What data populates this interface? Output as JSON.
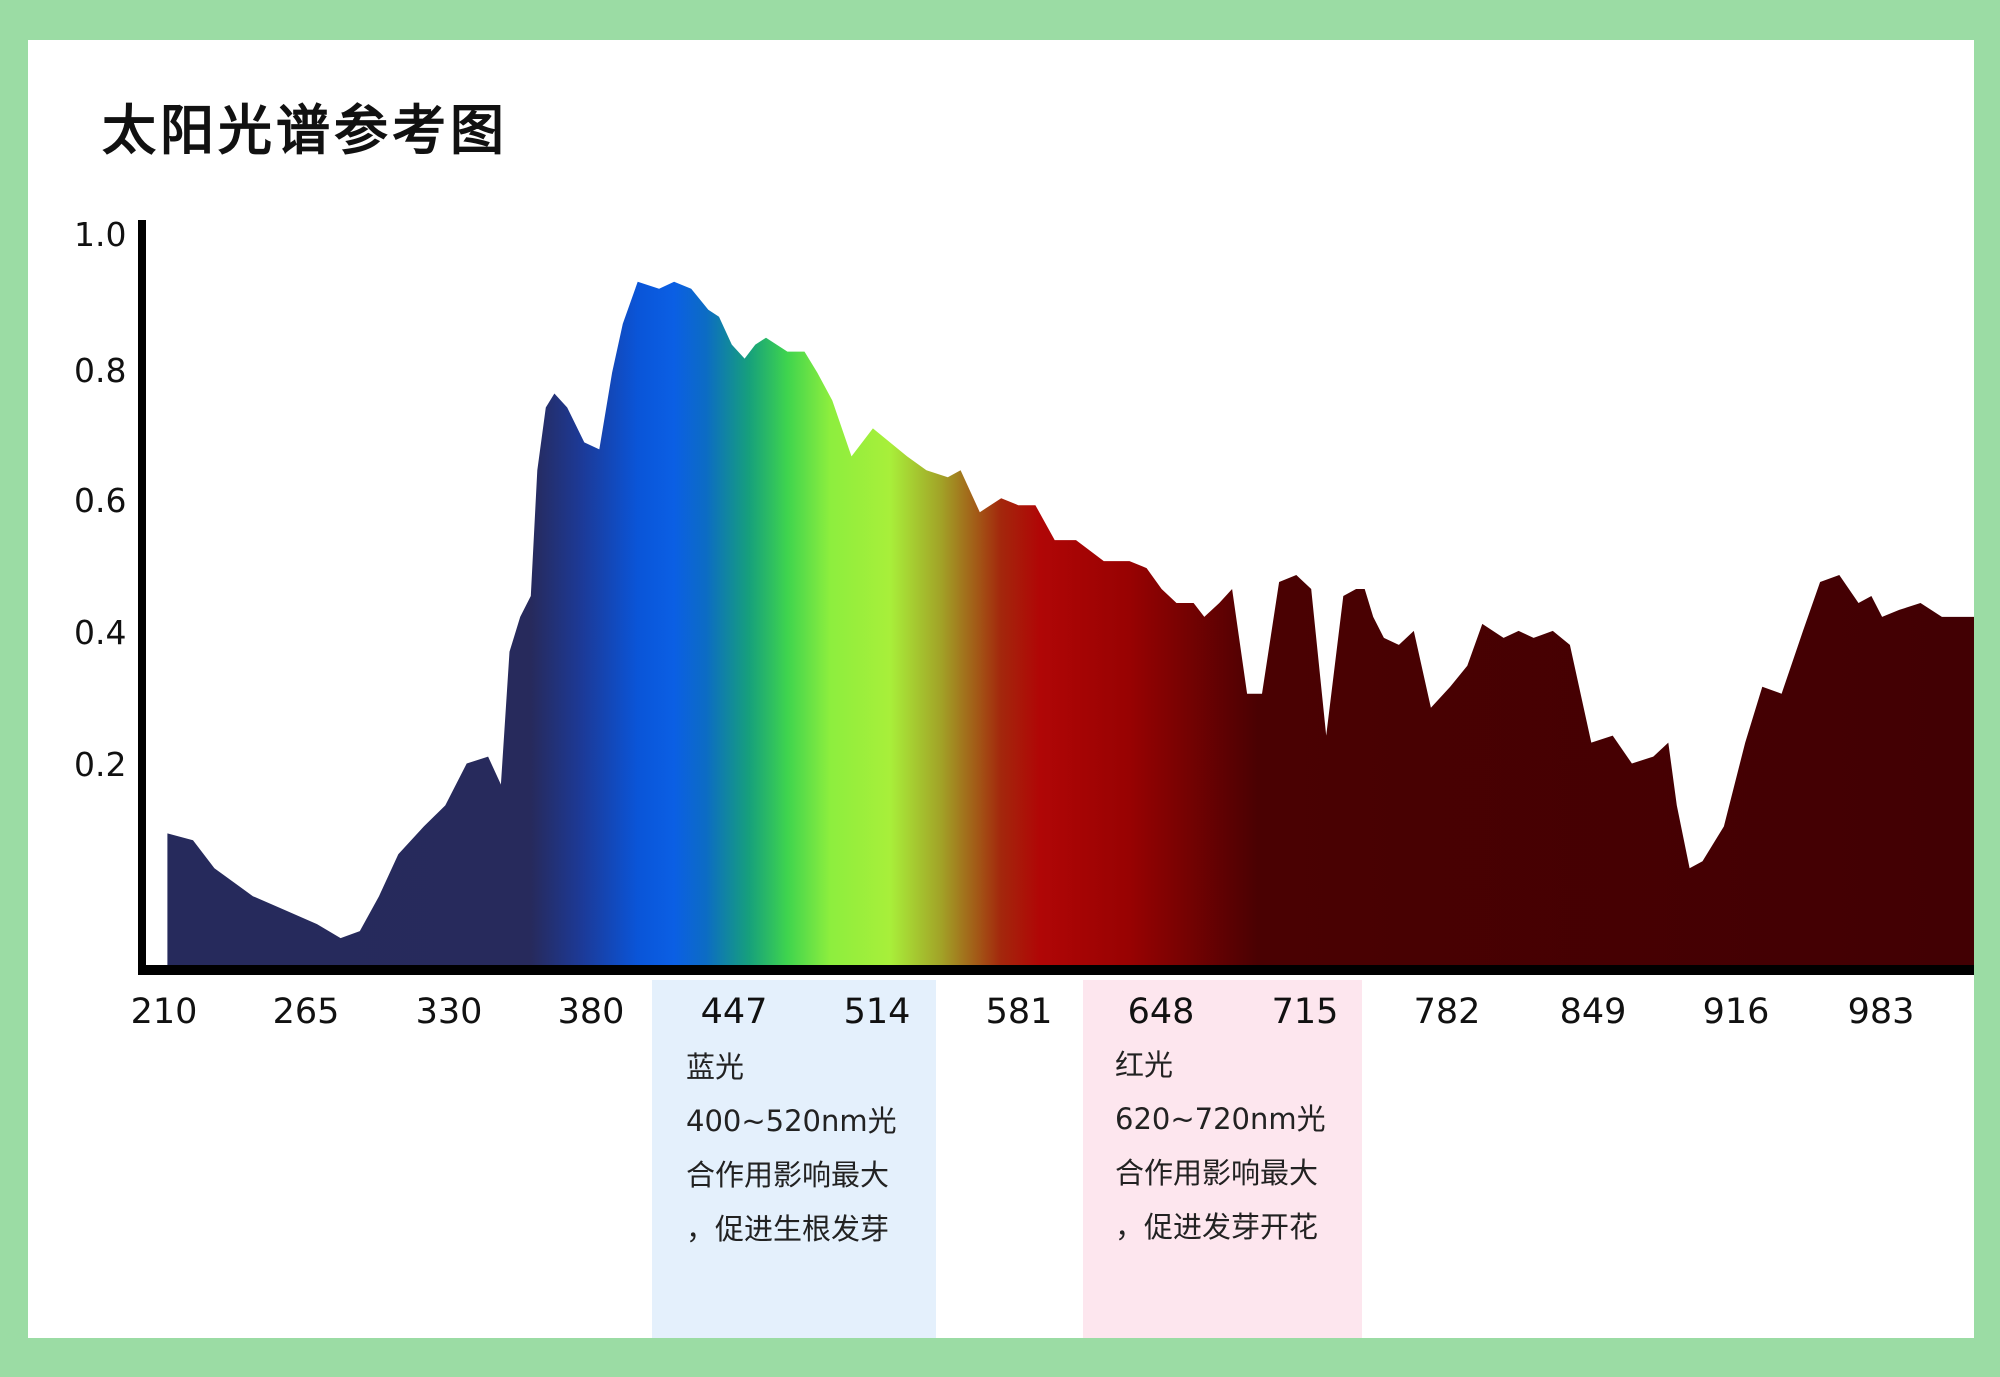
{
  "title": "太阳光谱参考图",
  "colors": {
    "frame": "#9bdca4",
    "blue_band_bg": "#e4f0fc",
    "red_band_bg": "#fde6ee",
    "axis": "#000000"
  },
  "chart_data": {
    "type": "area",
    "title": "太阳光谱参考图",
    "xlabel": "",
    "ylabel": "",
    "x_ticks": [
      "210",
      "265",
      "330",
      "380",
      "447",
      "514",
      "581",
      "648",
      "715",
      "782",
      "849",
      "916",
      "983"
    ],
    "y_ticks": [
      "1.0",
      "0.8",
      "0.6",
      "0.4",
      "0.2"
    ],
    "ylim": [
      0,
      1.08
    ],
    "xlim": [
      200,
      1055
    ],
    "grid": false,
    "series": [
      {
        "x": [
          210,
          222,
          232,
          250,
          265,
          280,
          291,
          300,
          309,
          318,
          330,
          340,
          350,
          360,
          366,
          370,
          375,
          380,
          383,
          387,
          391,
          397,
          405,
          412,
          418,
          423,
          430,
          440,
          447,
          455,
          463,
          468,
          474,
          480,
          485,
          490,
          500,
          508,
          514,
          521,
          530,
          540,
          548,
          556,
          565,
          575,
          581,
          590,
          600,
          608,
          616,
          625,
          635,
          648,
          660,
          668,
          675,
          682,
          690,
          695,
          702,
          708,
          715,
          722,
          730,
          738,
          745,
          752,
          760,
          766,
          770,
          774,
          779,
          786,
          793,
          801,
          810,
          818,
          825,
          835,
          842,
          849,
          858,
          866,
          876,
          886,
          895,
          905,
          912,
          916,
          922,
          928,
          938,
          948,
          956,
          965,
          975,
          983,
          992,
          1001,
          1007,
          1012,
          1020,
          1030,
          1040,
          1050
        ],
        "y": [
          0.19,
          0.18,
          0.14,
          0.1,
          0.08,
          0.06,
          0.04,
          0.05,
          0.1,
          0.16,
          0.2,
          0.23,
          0.29,
          0.3,
          0.26,
          0.45,
          0.5,
          0.53,
          0.71,
          0.8,
          0.82,
          0.8,
          0.75,
          0.74,
          0.85,
          0.92,
          0.98,
          0.97,
          0.98,
          0.97,
          0.94,
          0.93,
          0.89,
          0.87,
          0.89,
          0.9,
          0.88,
          0.88,
          0.85,
          0.81,
          0.73,
          0.77,
          0.75,
          0.73,
          0.71,
          0.7,
          0.71,
          0.65,
          0.67,
          0.66,
          0.66,
          0.61,
          0.61,
          0.58,
          0.58,
          0.57,
          0.54,
          0.52,
          0.52,
          0.5,
          0.52,
          0.54,
          0.39,
          0.39,
          0.55,
          0.56,
          0.54,
          0.33,
          0.53,
          0.54,
          0.54,
          0.5,
          0.47,
          0.46,
          0.48,
          0.37,
          0.4,
          0.43,
          0.49,
          0.47,
          0.48,
          0.47,
          0.48,
          0.46,
          0.32,
          0.33,
          0.29,
          0.3,
          0.32,
          0.23,
          0.14,
          0.15,
          0.2,
          0.32,
          0.4,
          0.39,
          0.48,
          0.55,
          0.56,
          0.52,
          0.53,
          0.5,
          0.51,
          0.52,
          0.5,
          0.5
        ]
      }
    ],
    "gradient_stops": [
      {
        "nm": 210,
        "color": "#262a5c"
      },
      {
        "nm": 380,
        "color": "#272a5c"
      },
      {
        "nm": 404,
        "color": "#1c3a98"
      },
      {
        "nm": 430,
        "color": "#0a55d8"
      },
      {
        "nm": 447,
        "color": "#0b5fe4"
      },
      {
        "nm": 462,
        "color": "#0c6cc4"
      },
      {
        "nm": 482,
        "color": "#16a07c"
      },
      {
        "nm": 500,
        "color": "#3fd44e"
      },
      {
        "nm": 520,
        "color": "#8dee3e"
      },
      {
        "nm": 548,
        "color": "#a8ef3a"
      },
      {
        "nm": 572,
        "color": "#a2a227"
      },
      {
        "nm": 600,
        "color": "#a3270c"
      },
      {
        "nm": 618,
        "color": "#b00606"
      },
      {
        "nm": 660,
        "color": "#980202"
      },
      {
        "nm": 720,
        "color": "#4a0102"
      },
      {
        "nm": 1055,
        "color": "#420003"
      }
    ],
    "bands": [
      {
        "name": "blue-band",
        "range_nm": [
          400,
          520
        ],
        "lines": [
          "蓝光",
          "400~520nm光",
          "合作用影响最大",
          "，促进生根发芽"
        ]
      },
      {
        "name": "red-band",
        "range_nm": [
          620,
          720
        ],
        "lines": [
          "红光",
          "620~720nm光",
          "合作用影响最大",
          "，促进发芽开花"
        ]
      }
    ]
  }
}
